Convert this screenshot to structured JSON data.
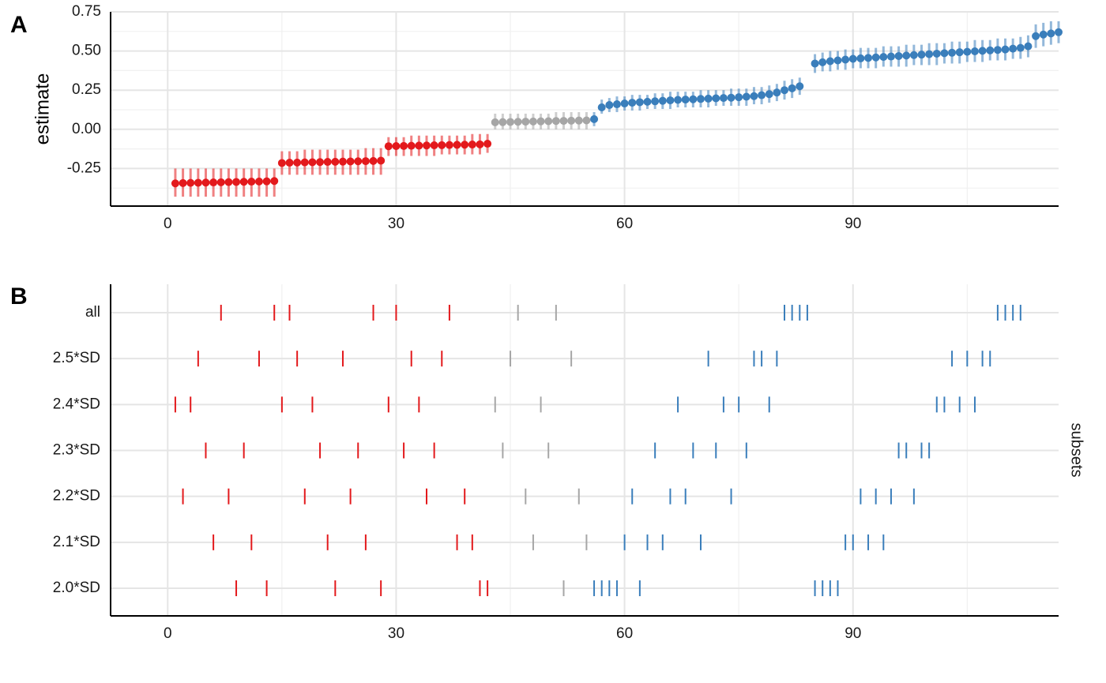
{
  "colors": {
    "negative": "#e3191c",
    "neutral": "#a6a6a6",
    "positive": "#3a7ebb",
    "grid_major": "#e5e5e5",
    "grid_minor": "#f0f0f0",
    "axis": "#000000"
  },
  "chart_data": [
    {
      "panel_label": "A",
      "type": "scatter",
      "style": "pointrange",
      "ylabel": "estimate",
      "xlabel": "",
      "xlim": [
        -7.5,
        117
      ],
      "ylim": [
        -0.49,
        0.75
      ],
      "x_ticks": [
        0,
        30,
        60,
        90
      ],
      "x_minor_ticks": [
        15,
        45,
        75,
        105
      ],
      "y_ticks": [
        -0.25,
        0,
        0.25,
        0.5,
        0.75
      ],
      "y_tick_labels": [
        "-0.25",
        "0.00",
        "0.25",
        "0.50",
        "0.75"
      ],
      "y_minor_ticks": [
        -0.375,
        -0.125,
        0.125,
        0.375,
        0.625
      ],
      "grid": true,
      "groups": [
        {
          "color_key": "negative",
          "x_start": 1,
          "estimates": [
            -0.345,
            -0.343,
            -0.342,
            -0.341,
            -0.34,
            -0.339,
            -0.338,
            -0.337,
            -0.336,
            -0.335,
            -0.334,
            -0.333,
            -0.332,
            -0.33
          ],
          "lower": [
            -0.43,
            -0.43,
            -0.43,
            -0.43,
            -0.43,
            -0.43,
            -0.43,
            -0.43,
            -0.43,
            -0.43,
            -0.43,
            -0.43,
            -0.43,
            -0.43
          ],
          "upper": [
            -0.25,
            -0.25,
            -0.25,
            -0.25,
            -0.25,
            -0.25,
            -0.25,
            -0.25,
            -0.25,
            -0.25,
            -0.25,
            -0.25,
            -0.25,
            -0.25
          ]
        },
        {
          "color_key": "negative",
          "x_start": 15,
          "estimates": [
            -0.215,
            -0.213,
            -0.212,
            -0.211,
            -0.21,
            -0.209,
            -0.208,
            -0.207,
            -0.206,
            -0.205,
            -0.204,
            -0.203,
            -0.202,
            -0.2
          ],
          "lower": [
            -0.29,
            -0.29,
            -0.29,
            -0.29,
            -0.29,
            -0.29,
            -0.29,
            -0.29,
            -0.29,
            -0.29,
            -0.29,
            -0.29,
            -0.29,
            -0.29
          ],
          "upper": [
            -0.14,
            -0.14,
            -0.14,
            -0.13,
            -0.13,
            -0.13,
            -0.13,
            -0.13,
            -0.13,
            -0.13,
            -0.13,
            -0.12,
            -0.12,
            -0.12
          ]
        },
        {
          "color_key": "negative",
          "x_start": 29,
          "estimates": [
            -0.108,
            -0.107,
            -0.106,
            -0.105,
            -0.104,
            -0.103,
            -0.102,
            -0.101,
            -0.1,
            -0.099,
            -0.098,
            -0.097,
            -0.096,
            -0.092
          ],
          "lower": [
            -0.17,
            -0.17,
            -0.17,
            -0.17,
            -0.17,
            -0.17,
            -0.17,
            -0.16,
            -0.16,
            -0.16,
            -0.16,
            -0.16,
            -0.16,
            -0.15
          ],
          "upper": [
            -0.05,
            -0.05,
            -0.05,
            -0.04,
            -0.04,
            -0.04,
            -0.04,
            -0.04,
            -0.04,
            -0.04,
            -0.04,
            -0.03,
            -0.03,
            -0.03
          ]
        },
        {
          "color_key": "neutral",
          "x_start": 43,
          "estimates": [
            0.045,
            0.046,
            0.047,
            0.048,
            0.049,
            0.05,
            0.051,
            0.052,
            0.053,
            0.054,
            0.055,
            0.056,
            0.057
          ],
          "lower": [
            0,
            0,
            0,
            0,
            0,
            0,
            0,
            0,
            0,
            0,
            0,
            0,
            0
          ],
          "upper": [
            0.1,
            0.1,
            0.1,
            0.1,
            0.1,
            0.1,
            0.1,
            0.1,
            0.11,
            0.11,
            0.11,
            0.11,
            0.11
          ]
        },
        {
          "color_key": "positive",
          "x_start": 56,
          "estimates": [
            0.065,
            0.14,
            0.155,
            0.16,
            0.165,
            0.17,
            0.173,
            0.176,
            0.179,
            0.182,
            0.185,
            0.188,
            0.19,
            0.192,
            0.194,
            0.196,
            0.198,
            0.2,
            0.202,
            0.205,
            0.208,
            0.212,
            0.218,
            0.225,
            0.235,
            0.25,
            0.262,
            0.275
          ],
          "lower": [
            0.02,
            0.1,
            0.11,
            0.11,
            0.12,
            0.12,
            0.12,
            0.13,
            0.13,
            0.13,
            0.13,
            0.14,
            0.14,
            0.14,
            0.14,
            0.14,
            0.15,
            0.15,
            0.15,
            0.15,
            0.15,
            0.16,
            0.16,
            0.17,
            0.18,
            0.19,
            0.2,
            0.22
          ],
          "upper": [
            0.11,
            0.19,
            0.2,
            0.21,
            0.21,
            0.22,
            0.22,
            0.22,
            0.23,
            0.23,
            0.24,
            0.24,
            0.24,
            0.24,
            0.25,
            0.25,
            0.25,
            0.25,
            0.26,
            0.26,
            0.26,
            0.27,
            0.27,
            0.28,
            0.29,
            0.31,
            0.32,
            0.33
          ]
        },
        {
          "color_key": "positive",
          "x_start": 85,
          "estimates": [
            0.42,
            0.428,
            0.435,
            0.44,
            0.445,
            0.45,
            0.453,
            0.456,
            0.459,
            0.462,
            0.465,
            0.468,
            0.471,
            0.474,
            0.477,
            0.48,
            0.483,
            0.486,
            0.489,
            0.492,
            0.495,
            0.498,
            0.501,
            0.504,
            0.507,
            0.51,
            0.515,
            0.52,
            0.53,
            0.595,
            0.605,
            0.612,
            0.62
          ],
          "lower": [
            0.36,
            0.37,
            0.37,
            0.38,
            0.38,
            0.39,
            0.39,
            0.39,
            0.39,
            0.4,
            0.4,
            0.4,
            0.4,
            0.41,
            0.41,
            0.41,
            0.41,
            0.42,
            0.42,
            0.42,
            0.43,
            0.43,
            0.43,
            0.44,
            0.44,
            0.44,
            0.45,
            0.45,
            0.46,
            0.52,
            0.53,
            0.54,
            0.55
          ],
          "upper": [
            0.48,
            0.49,
            0.5,
            0.5,
            0.51,
            0.51,
            0.52,
            0.52,
            0.52,
            0.53,
            0.53,
            0.53,
            0.54,
            0.54,
            0.54,
            0.55,
            0.55,
            0.55,
            0.56,
            0.56,
            0.56,
            0.57,
            0.57,
            0.57,
            0.58,
            0.58,
            0.58,
            0.59,
            0.6,
            0.67,
            0.68,
            0.69,
            0.69
          ]
        }
      ]
    },
    {
      "panel_label": "B",
      "type": "scatter",
      "style": "rug",
      "ylabel": "",
      "xlabel": "",
      "facet_label": "subsets",
      "xlim": [
        -7.5,
        117
      ],
      "x_ticks": [
        0,
        30,
        60,
        90
      ],
      "x_minor_ticks": [
        15,
        45,
        75,
        105
      ],
      "grid": true,
      "rows": [
        {
          "label": "all",
          "negative": [
            7,
            14,
            16,
            27,
            30,
            37
          ],
          "neutral": [
            46,
            51
          ],
          "positive": [
            81,
            82,
            83,
            84,
            109,
            110,
            111,
            112
          ]
        },
        {
          "label": "2.5*SD",
          "negative": [
            4,
            12,
            17,
            23,
            32,
            36
          ],
          "neutral": [
            45,
            53
          ],
          "positive": [
            71,
            77,
            78,
            80,
            103,
            105,
            107,
            108
          ]
        },
        {
          "label": "2.4*SD",
          "negative": [
            1,
            3,
            15,
            19,
            29,
            33
          ],
          "neutral": [
            43,
            49
          ],
          "positive": [
            67,
            73,
            75,
            79,
            101,
            102,
            104,
            106
          ]
        },
        {
          "label": "2.3*SD",
          "negative": [
            5,
            10,
            20,
            25,
            31,
            35
          ],
          "neutral": [
            44,
            50
          ],
          "positive": [
            64,
            69,
            72,
            76,
            96,
            97,
            99,
            100
          ]
        },
        {
          "label": "2.2*SD",
          "negative": [
            2,
            8,
            18,
            24,
            34,
            39
          ],
          "neutral": [
            47,
            54
          ],
          "positive": [
            61,
            66,
            68,
            74,
            91,
            93,
            95,
            98
          ]
        },
        {
          "label": "2.1*SD",
          "negative": [
            6,
            11,
            21,
            26,
            38,
            40
          ],
          "neutral": [
            48,
            55
          ],
          "positive": [
            60,
            63,
            65,
            70,
            89,
            90,
            92,
            94
          ]
        },
        {
          "label": "2.0*SD",
          "negative": [
            9,
            13,
            22,
            28,
            41,
            42
          ],
          "neutral": [
            52
          ],
          "positive": [
            56,
            57,
            58,
            59,
            62,
            85,
            86,
            87,
            88
          ]
        }
      ]
    }
  ]
}
